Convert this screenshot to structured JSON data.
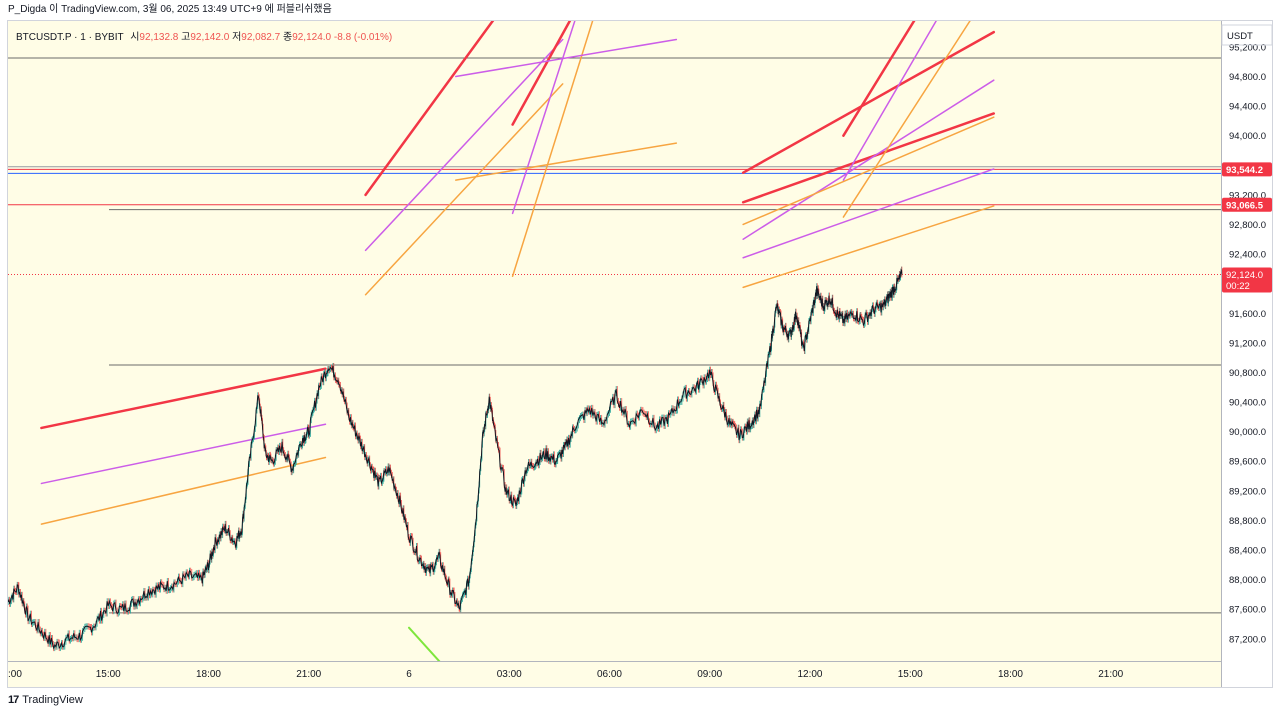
{
  "header": {
    "credit": "P_Digda 이 TradingView.com, 3월 06, 2025 13:49 UTC+9 에 퍼블리쉬했음"
  },
  "legend": {
    "symbol": "BTCUSDT.P · 1 · BYBIT",
    "open_label": "시",
    "open": "92,132.8",
    "high_label": "고",
    "high": "92,142.0",
    "low_label": "저",
    "low": "92,082.7",
    "close_label": "종",
    "close": "92,124.0",
    "change": "-8.8 (-0.01%)"
  },
  "footer": {
    "logo_mark": "17",
    "brand": "TradingView"
  },
  "chart_data": {
    "type": "line",
    "title": "",
    "xlabel": "",
    "ylabel": "",
    "currency": "USDT",
    "ylim": [
      86900,
      95550
    ],
    "x_ticks": [
      ":00",
      "15:00",
      "18:00",
      "21:00",
      "6",
      "03:00",
      "06:00",
      "09:00",
      "12:00",
      "15:00",
      "18:00",
      "21:00"
    ],
    "x_tick_hours": [
      12,
      15,
      18,
      21,
      24,
      27,
      30,
      33,
      36,
      39,
      42,
      45
    ],
    "xlim_hours": [
      12,
      48.3
    ],
    "y_ticks": [
      87200,
      87600,
      88000,
      88400,
      88800,
      89200,
      89600,
      90000,
      90400,
      90800,
      91200,
      91600,
      92000,
      92400,
      92800,
      93200,
      93600,
      94000,
      94400,
      94800,
      95200
    ],
    "y_tick_labels": [
      "87,200.0",
      "87,600.0",
      "88,000.0",
      "88,400.0",
      "88,800.0",
      "89,200.0",
      "89,600.0",
      "90,000.0",
      "90,400.0",
      "90,800.0",
      "91,200.0",
      "91,600.0",
      "92,000.0",
      "92,400.0",
      "92,800.0",
      "93,200.0",
      "93,600.0",
      "94,000.0",
      "94,400.0",
      "94,800.0",
      "95,200.0"
    ],
    "price_series": {
      "hours": [
        12.0,
        12.3,
        12.6,
        13.0,
        13.4,
        13.8,
        14.2,
        14.6,
        15.0,
        15.4,
        15.8,
        16.2,
        16.6,
        17.0,
        17.4,
        17.8,
        18.0,
        18.2,
        18.5,
        18.8,
        19.0,
        19.2,
        19.5,
        19.7,
        19.9,
        20.2,
        20.5,
        20.8,
        21.0,
        21.3,
        21.6,
        21.9,
        22.2,
        22.5,
        22.8,
        23.1,
        23.4,
        23.7,
        24.0,
        24.3,
        24.6,
        24.9,
        25.2,
        25.5,
        25.8,
        26.0,
        26.2,
        26.4,
        26.6,
        26.9,
        27.2,
        27.5,
        27.8,
        28.1,
        28.4,
        28.7,
        29.0,
        29.4,
        29.8,
        30.2,
        30.6,
        31.0,
        31.4,
        31.8,
        32.2,
        32.6,
        33.0,
        33.3,
        33.6,
        33.9,
        34.2,
        34.5,
        34.8,
        35.0,
        35.2,
        35.4,
        35.6,
        35.8,
        36.0,
        36.2,
        36.4,
        36.6,
        36.8,
        37.0,
        37.3,
        37.6,
        37.9,
        38.2,
        38.4,
        38.6,
        38.75
      ],
      "values": [
        87700,
        87900,
        87500,
        87300,
        87100,
        87200,
        87250,
        87400,
        87650,
        87600,
        87700,
        87850,
        87900,
        87950,
        88050,
        88000,
        88200,
        88500,
        88700,
        88500,
        88700,
        89500,
        90500,
        89700,
        89600,
        89800,
        89500,
        89900,
        90000,
        90600,
        90900,
        90700,
        90200,
        89900,
        89600,
        89300,
        89500,
        89100,
        88600,
        88300,
        88100,
        88300,
        87900,
        87600,
        88000,
        88800,
        89900,
        90450,
        89900,
        89200,
        89000,
        89500,
        89600,
        89700,
        89600,
        89800,
        90100,
        90300,
        90100,
        90500,
        90100,
        90300,
        90050,
        90200,
        90500,
        90600,
        90800,
        90400,
        90100,
        89950,
        90100,
        90300,
        91100,
        91700,
        91400,
        91300,
        91600,
        91100,
        91500,
        91900,
        91700,
        91800,
        91600,
        91500,
        91600,
        91500,
        91650,
        91700,
        91850,
        92000,
        92124
      ]
    },
    "horizontal_lines": [
      {
        "price": 95050,
        "color": "#6b6b6b"
      },
      {
        "price": 93580,
        "color": "#9598a1"
      },
      {
        "price": 93544.2,
        "color": "#f23645",
        "label": "93,544.2"
      },
      {
        "price": 93490,
        "color": "#2962ff"
      },
      {
        "price": 93066.5,
        "color": "#f23645",
        "label": "93,066.5"
      },
      {
        "price": 93000,
        "color": "#6b6b6b"
      },
      {
        "price": 90900,
        "color": "#6b6b6b"
      },
      {
        "price": 87550,
        "color": "#6b6b6b"
      }
    ],
    "current_price": {
      "price": 92124.0,
      "label": "92,124.0",
      "countdown": "00:22",
      "color": "#f23645"
    },
    "trend_lines": [
      {
        "h1": 22.7,
        "p1": 93200,
        "h2": 29.5,
        "p2": 97400,
        "color": "#f23645",
        "width": 2.5
      },
      {
        "h1": 22.7,
        "p1": 92450,
        "h2": 28.6,
        "p2": 95300,
        "color": "#cc5de8",
        "width": 1.5
      },
      {
        "h1": 22.7,
        "p1": 91850,
        "h2": 28.6,
        "p2": 94700,
        "color": "#f7a541",
        "width": 1.5
      },
      {
        "h1": 27.1,
        "p1": 94150,
        "h2": 29.3,
        "p2": 95950,
        "color": "#f23645",
        "width": 2.5
      },
      {
        "h1": 27.1,
        "p1": 92950,
        "h2": 30.0,
        "p2": 97000,
        "color": "#cc5de8",
        "width": 1.5
      },
      {
        "h1": 27.1,
        "p1": 92100,
        "h2": 30.5,
        "p2": 97000,
        "color": "#f7a541",
        "width": 1.5
      },
      {
        "h1": 25.4,
        "p1": 94800,
        "h2": 32.0,
        "p2": 95300,
        "color": "#cc5de8",
        "width": 1.5
      },
      {
        "h1": 25.4,
        "p1": 93400,
        "h2": 32.0,
        "p2": 93900,
        "color": "#f7a541",
        "width": 1.5
      },
      {
        "h1": 13.0,
        "p1": 90050,
        "h2": 21.5,
        "p2": 90850,
        "color": "#f23645",
        "width": 2.5
      },
      {
        "h1": 13.0,
        "p1": 89300,
        "h2": 21.5,
        "p2": 90100,
        "color": "#cc5de8",
        "width": 1.5
      },
      {
        "h1": 13.0,
        "p1": 88750,
        "h2": 21.5,
        "p2": 89650,
        "color": "#f7a541",
        "width": 1.5
      },
      {
        "h1": 34.0,
        "p1": 93500,
        "h2": 41.5,
        "p2": 95400,
        "color": "#f23645",
        "width": 2.5
      },
      {
        "h1": 34.0,
        "p1": 93100,
        "h2": 41.5,
        "p2": 94300,
        "color": "#f23645",
        "width": 2.5
      },
      {
        "h1": 34.0,
        "p1": 92600,
        "h2": 41.5,
        "p2": 94750,
        "color": "#cc5de8",
        "width": 1.5
      },
      {
        "h1": 34.0,
        "p1": 92350,
        "h2": 41.5,
        "p2": 93550,
        "color": "#cc5de8",
        "width": 1.5
      },
      {
        "h1": 34.0,
        "p1": 91950,
        "h2": 41.5,
        "p2": 93050,
        "color": "#f7a541",
        "width": 1.5
      },
      {
        "h1": 34.0,
        "p1": 92800,
        "h2": 41.5,
        "p2": 94250,
        "color": "#f7a541",
        "width": 1.5
      },
      {
        "h1": 37.0,
        "p1": 94000,
        "h2": 40.0,
        "p2": 96200,
        "color": "#f23645",
        "width": 2.5
      },
      {
        "h1": 37.0,
        "p1": 93400,
        "h2": 41.0,
        "p2": 96500,
        "color": "#cc5de8",
        "width": 1.5
      },
      {
        "h1": 37.0,
        "p1": 92900,
        "h2": 42.0,
        "p2": 96400,
        "color": "#f7a541",
        "width": 1.5
      },
      {
        "h1": 24.0,
        "p1": 87350,
        "h2": 25.0,
        "p2": 86850,
        "color": "#7ee63c",
        "width": 2
      }
    ]
  }
}
